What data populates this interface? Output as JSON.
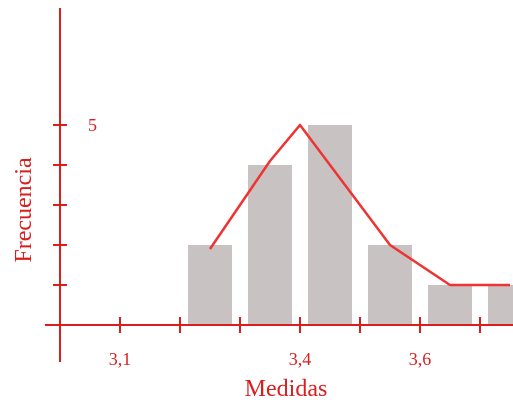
{
  "chart_data": {
    "type": "bar",
    "title": "",
    "xlabel": "Medidas",
    "ylabel": "Frecuencia",
    "categories": [
      "3,25",
      "3,35",
      "3,45",
      "3,55",
      "3,65",
      "3,75"
    ],
    "x": [
      3.25,
      3.35,
      3.45,
      3.55,
      3.65,
      3.75
    ],
    "values": [
      2,
      4,
      5,
      2,
      1,
      1
    ],
    "polygon": {
      "x": [
        3.25,
        3.35,
        3.4,
        3.55,
        3.65,
        3.75
      ],
      "y": [
        1.9,
        4.1,
        5,
        2,
        1,
        1
      ]
    },
    "x_ticks": [
      3.1,
      3.2,
      3.3,
      3.4,
      3.5,
      3.6,
      3.7
    ],
    "x_tick_labels": [
      {
        "value": 3.1,
        "text": "3,1"
      },
      {
        "value": 3.4,
        "text": "3,4"
      },
      {
        "value": 3.6,
        "text": "3,6"
      }
    ],
    "y_ticks": [
      1,
      2,
      3,
      4,
      5
    ],
    "y_tick_labels": [
      {
        "value": 5,
        "text": "5"
      }
    ],
    "xlim": [
      3.0,
      3.8
    ],
    "ylim": [
      0,
      8
    ],
    "grid": false,
    "colors": {
      "axis": "#d91e1e",
      "bar": "#c8c2c2",
      "polygon": "#ee3333"
    }
  }
}
